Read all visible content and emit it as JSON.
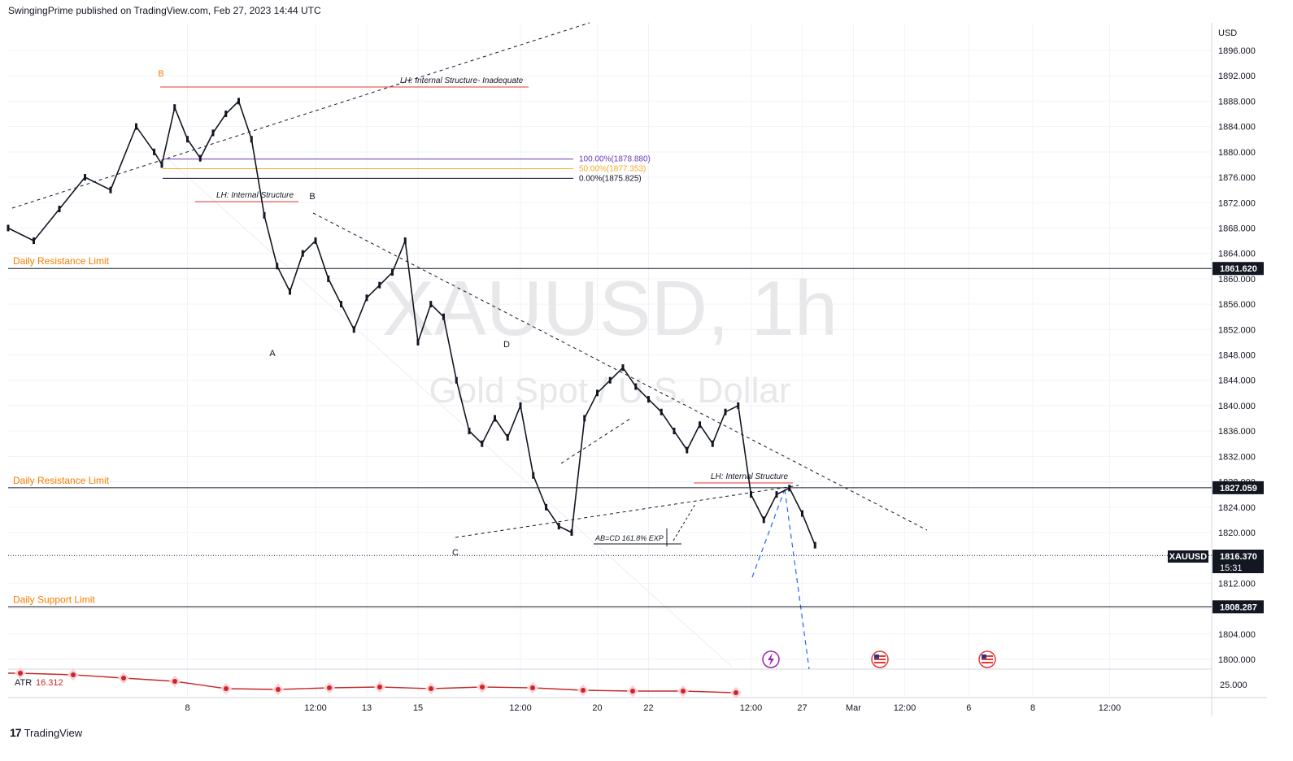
{
  "header": {
    "published_by": "SwingingPrime published on TradingView.com, Feb 27, 2023 14:44 UTC"
  },
  "footer": {
    "brand": "TradingView",
    "brand_icon": "tradingview-logo-icon"
  },
  "watermark": {
    "symbol": "XAUUSD, 1h",
    "description": "Gold Spot / U.S. Dollar"
  },
  "colors": {
    "candle": "#131722",
    "level_line": "#131722",
    "level_label": "#f57c00",
    "red_line": "#e53935",
    "fib_100": "#673ab7",
    "fib_50": "#f9a825",
    "fib_0": "#131722",
    "projection": "#2962ff",
    "atr": "#c62828"
  },
  "chart_data": {
    "type": "line",
    "title": "XAUUSD, 1h",
    "subtitle": "Gold Spot / U.S. Dollar",
    "currency": "USD",
    "price_axis": {
      "ticks": [
        "1896.000",
        "1892.000",
        "1888.000",
        "1884.000",
        "1880.000",
        "1876.000",
        "1872.000",
        "1868.000",
        "1864.000",
        "1860.000",
        "1856.000",
        "1852.000",
        "1848.000",
        "1844.000",
        "1840.000",
        "1836.000",
        "1832.000",
        "1828.000",
        "1824.000",
        "1820.000",
        "1812.000",
        "1804.000",
        "1800.000"
      ],
      "ylim": [
        1798,
        1900
      ]
    },
    "time_axis": {
      "ticks": [
        "8",
        "12:00",
        "13",
        "15",
        "12:00",
        "20",
        "22",
        "12:00",
        "27",
        "Mar",
        "12:00",
        "6",
        "8",
        "12:00"
      ],
      "tick_x": [
        7,
        12,
        14,
        16,
        20,
        23,
        25,
        29,
        31,
        33,
        35,
        37.5,
        40,
        43
      ]
    },
    "series": [
      {
        "name": "XAUUSD",
        "x": [
          0,
          1,
          2,
          3,
          4,
          5,
          5.7,
          6,
          6.5,
          7,
          7.5,
          8,
          8.5,
          9,
          9.5,
          10,
          10.5,
          11,
          11.5,
          12,
          12.5,
          13,
          13.5,
          14,
          14.5,
          15,
          15.5,
          16,
          16.5,
          17,
          17.5,
          18,
          18.5,
          19,
          19.5,
          20,
          20.5,
          21,
          21.5,
          22,
          22.5,
          23,
          23.5,
          24,
          24.5,
          25,
          25.5,
          26,
          26.5,
          27,
          27.5,
          28,
          28.5,
          29,
          29.5,
          30,
          30.5,
          31,
          31.5
        ],
        "y": [
          1868,
          1866,
          1871,
          1876,
          1874,
          1884,
          1880,
          1878,
          1887,
          1882,
          1879,
          1883,
          1886,
          1888,
          1882,
          1870,
          1862,
          1858,
          1864,
          1866,
          1860,
          1856,
          1852,
          1857,
          1859,
          1861,
          1866,
          1850,
          1856,
          1854,
          1844,
          1836,
          1834,
          1838,
          1835,
          1840,
          1829,
          1824,
          1821,
          1820,
          1838,
          1842,
          1844,
          1846,
          1843,
          1841,
          1839,
          1836,
          1833,
          1837,
          1834,
          1839,
          1840,
          1826,
          1822,
          1826,
          1827,
          1823,
          1818
        ]
      }
    ],
    "last_price": {
      "symbol": "XAUUSD",
      "value": "1816.370",
      "countdown": "15:31"
    },
    "levels": [
      {
        "label": "Daily Resistance Limit",
        "price": 1861.62,
        "tag": "1861.620"
      },
      {
        "label": "Daily Resistance Limit",
        "price": 1827.059,
        "tag": "1827.059"
      },
      {
        "label": "Daily Support Limit",
        "price": 1808.287,
        "tag": "1808.287"
      }
    ],
    "fibonacci": [
      {
        "label": "100.00%(1878.880)",
        "price": 1878.88
      },
      {
        "label": "50.00%(1877.353)",
        "price": 1877.353
      },
      {
        "label": "0.00%(1875.825)",
        "price": 1875.825
      }
    ],
    "annotations": [
      {
        "text": "LH: Internal Structure- Inadequate"
      },
      {
        "text": "LH: Internal Structure"
      },
      {
        "text": "LH: Internal Structure"
      },
      {
        "text": "AB=CD 161.8% EXP"
      },
      {
        "text": "B"
      },
      {
        "text": "B"
      },
      {
        "text": "A"
      },
      {
        "text": "C"
      },
      {
        "text": "D"
      }
    ],
    "atr": {
      "label": "ATR",
      "value": "16.312",
      "axis_tick": "25.000"
    },
    "event_icons": [
      "lightning-icon",
      "us-flag-icon",
      "us-flag-icon"
    ],
    "grid": true
  }
}
